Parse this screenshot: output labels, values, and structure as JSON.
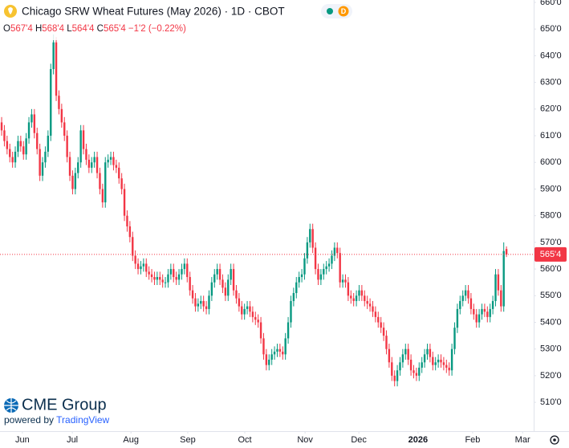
{
  "chart_data": {
    "type": "candlestick",
    "title": "Chicago SRW Wheat Futures (May 2026) · 1D · CBOT",
    "badge": "D",
    "ohlc_names": [
      "O",
      "H",
      "L",
      "C"
    ],
    "ohlc_labels": [
      "567'4",
      "568'4",
      "564'4",
      "565'4"
    ],
    "change_label": "−1'2 (−0.22%)",
    "last_label": "565'4",
    "brand": "CME Group",
    "powered_by": "powered by",
    "powered_brand": "TradingView",
    "up_color": "#089981",
    "down_color": "#f23645",
    "grid": false,
    "xlim": [
      -0.6,
      193.5
    ],
    "xticks": [
      {
        "value": 7.6,
        "label": "Jun"
      },
      {
        "value": 25.9,
        "label": "Jul"
      },
      {
        "value": 47.4,
        "label": "Aug"
      },
      {
        "value": 68.2,
        "label": "Sep"
      },
      {
        "value": 89.1,
        "label": "Oct"
      },
      {
        "value": 111.2,
        "label": "Nov"
      },
      {
        "value": 130.9,
        "label": "Dec"
      },
      {
        "value": 152.6,
        "label": "2026"
      },
      {
        "value": 172.6,
        "label": "Feb"
      },
      {
        "value": 190.9,
        "label": "Mar"
      }
    ],
    "ylim": [
      499.2,
      660.9
    ],
    "yticks": [
      {
        "value": 510,
        "label": "510'0"
      },
      {
        "value": 520,
        "label": "520'0"
      },
      {
        "value": 530,
        "label": "530'0"
      },
      {
        "value": 540,
        "label": "540'0"
      },
      {
        "value": 550,
        "label": "550'0"
      },
      {
        "value": 560,
        "label": "560'0"
      },
      {
        "value": 570,
        "label": "570'0"
      },
      {
        "value": 580,
        "label": "580'0"
      },
      {
        "value": 590,
        "label": "590'0"
      },
      {
        "value": 600,
        "label": "600'0"
      },
      {
        "value": 610,
        "label": "610'0"
      },
      {
        "value": 620,
        "label": "620'0"
      },
      {
        "value": 630,
        "label": "630'0"
      },
      {
        "value": 640,
        "label": "640'0"
      },
      {
        "value": 650,
        "label": "650'0"
      },
      {
        "value": 660,
        "label": "660'0"
      }
    ],
    "open": [
      615,
      612,
      608,
      605,
      602,
      600,
      604,
      608,
      606,
      603,
      609,
      615,
      618,
      611,
      605,
      595,
      600,
      604,
      610,
      635,
      645,
      625,
      620,
      615,
      610,
      602,
      595,
      590,
      596,
      600,
      612,
      605,
      601,
      598,
      600,
      602,
      596,
      590,
      585,
      600,
      601,
      602,
      599,
      598,
      594,
      590,
      580,
      576,
      572,
      565,
      562,
      560,
      561,
      562,
      559,
      558,
      557,
      556,
      557,
      556,
      555,
      555,
      558,
      560,
      557,
      556,
      558,
      560,
      562,
      557,
      552,
      549,
      546,
      547,
      548,
      546,
      545,
      550,
      555,
      558,
      560,
      556,
      553,
      550,
      556,
      560,
      552,
      549,
      546,
      543,
      545,
      546,
      544,
      542,
      541,
      540,
      534,
      528,
      524,
      526,
      528,
      529,
      530,
      529,
      528,
      534,
      540,
      548,
      551,
      555,
      557,
      558,
      564,
      570,
      575,
      568,
      560,
      556,
      558,
      560,
      561,
      562,
      565,
      568,
      566,
      555,
      556,
      555,
      550,
      549,
      548,
      550,
      552,
      550,
      548,
      547,
      546,
      544,
      542,
      540,
      538,
      535,
      530,
      525,
      520,
      518,
      522,
      525,
      528,
      530,
      526,
      522,
      521,
      520,
      523,
      525,
      528,
      530,
      527,
      524,
      525,
      526,
      525,
      524,
      523,
      522,
      530,
      538,
      545,
      548,
      550,
      552,
      549,
      545,
      543,
      540,
      543,
      545,
      544,
      542,
      545,
      548,
      558,
      552,
      546,
      567.5
    ],
    "high": [
      617,
      614,
      610,
      607,
      604,
      606,
      610,
      610,
      608,
      611,
      617,
      620,
      620,
      613,
      607,
      602,
      606,
      612,
      637,
      648,
      647,
      627,
      622,
      617,
      612,
      604,
      597,
      598,
      602,
      614,
      614,
      607,
      603,
      602,
      604,
      604,
      598,
      592,
      602,
      603,
      604,
      604,
      601,
      600,
      596,
      592,
      582,
      578,
      574,
      567,
      564,
      563,
      564,
      564,
      561,
      560,
      559,
      559,
      559,
      558,
      557,
      560,
      562,
      562,
      559,
      560,
      562,
      564,
      564,
      559,
      554,
      551,
      549,
      550,
      550,
      548,
      552,
      557,
      560,
      562,
      562,
      558,
      555,
      558,
      562,
      562,
      554,
      551,
      548,
      547,
      548,
      548,
      546,
      544,
      543,
      542,
      536,
      530,
      528,
      530,
      531,
      532,
      532,
      531,
      536,
      542,
      550,
      553,
      557,
      559,
      560,
      566,
      572,
      577,
      577,
      570,
      562,
      560,
      562,
      563,
      564,
      567,
      570,
      570,
      568,
      558,
      558,
      557,
      552,
      551,
      552,
      554,
      554,
      552,
      550,
      549,
      548,
      546,
      544,
      542,
      540,
      537,
      532,
      527,
      522,
      524,
      527,
      530,
      532,
      532,
      528,
      524,
      523,
      525,
      527,
      530,
      532,
      532,
      529,
      527,
      528,
      528,
      527,
      526,
      525,
      532,
      540,
      547,
      550,
      552,
      554,
      554,
      551,
      547,
      545,
      545,
      547,
      547,
      546,
      547,
      550,
      560,
      560,
      554,
      570,
      568.5
    ],
    "low": [
      610,
      606,
      603,
      600,
      598,
      598,
      602,
      604,
      601,
      601,
      607,
      613,
      609,
      603,
      593,
      593,
      598,
      602,
      608,
      633,
      623,
      618,
      613,
      608,
      600,
      593,
      588,
      588,
      594,
      598,
      603,
      599,
      596,
      596,
      598,
      594,
      588,
      583,
      583,
      598,
      599,
      597,
      596,
      592,
      588,
      578,
      574,
      570,
      563,
      560,
      558,
      558,
      559,
      557,
      556,
      555,
      554,
      554,
      554,
      553,
      553,
      553,
      556,
      555,
      554,
      554,
      556,
      558,
      555,
      550,
      547,
      544,
      544,
      545,
      544,
      543,
      543,
      548,
      553,
      556,
      554,
      551,
      548,
      548,
      554,
      550,
      547,
      544,
      541,
      541,
      543,
      542,
      540,
      539,
      538,
      532,
      526,
      522,
      522,
      524,
      526,
      527,
      527,
      526,
      526,
      532,
      538,
      546,
      549,
      553,
      555,
      556,
      562,
      568,
      566,
      558,
      554,
      554,
      556,
      558,
      559,
      560,
      563,
      564,
      553,
      553,
      553,
      548,
      547,
      546,
      546,
      548,
      548,
      546,
      545,
      544,
      542,
      540,
      538,
      536,
      533,
      528,
      523,
      518,
      516,
      516,
      520,
      523,
      526,
      524,
      520,
      519,
      518,
      518,
      521,
      523,
      526,
      525,
      522,
      522,
      523,
      523,
      522,
      521,
      520,
      520,
      528,
      536,
      543,
      546,
      548,
      547,
      543,
      541,
      538,
      538,
      541,
      542,
      540,
      540,
      543,
      546,
      550,
      544,
      544,
      564.5
    ],
    "close": [
      612,
      608,
      605,
      602,
      600,
      604,
      608,
      606,
      603,
      609,
      615,
      618,
      611,
      605,
      595,
      600,
      604,
      610,
      635,
      645,
      625,
      620,
      615,
      610,
      602,
      595,
      590,
      596,
      600,
      612,
      605,
      601,
      598,
      600,
      602,
      596,
      590,
      585,
      600,
      601,
      602,
      599,
      598,
      594,
      590,
      580,
      576,
      572,
      565,
      562,
      560,
      561,
      562,
      559,
      558,
      557,
      556,
      557,
      556,
      555,
      555,
      558,
      560,
      557,
      556,
      558,
      560,
      562,
      557,
      552,
      549,
      546,
      547,
      548,
      546,
      545,
      550,
      555,
      558,
      560,
      556,
      553,
      550,
      556,
      560,
      552,
      549,
      546,
      543,
      545,
      546,
      544,
      542,
      541,
      540,
      534,
      528,
      524,
      526,
      528,
      529,
      530,
      529,
      528,
      534,
      540,
      548,
      551,
      555,
      557,
      558,
      564,
      570,
      575,
      568,
      560,
      556,
      558,
      560,
      561,
      562,
      565,
      568,
      566,
      555,
      556,
      555,
      550,
      549,
      548,
      550,
      552,
      550,
      548,
      547,
      546,
      544,
      542,
      540,
      538,
      535,
      530,
      525,
      520,
      518,
      522,
      525,
      528,
      530,
      526,
      522,
      521,
      520,
      523,
      525,
      528,
      530,
      527,
      524,
      525,
      526,
      525,
      524,
      523,
      522,
      530,
      538,
      545,
      548,
      550,
      552,
      549,
      545,
      543,
      540,
      543,
      545,
      544,
      542,
      545,
      548,
      558,
      552,
      546,
      566.75,
      565.5
    ]
  }
}
